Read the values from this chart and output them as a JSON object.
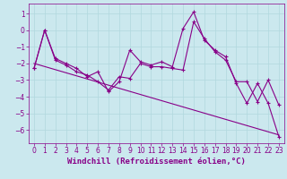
{
  "xlabel": "Windchill (Refroidissement éolien,°C)",
  "bg_color": "#cbe8ee",
  "line_color": "#880088",
  "grid_color": "#b0d8de",
  "xlim": [
    -0.5,
    23.5
  ],
  "ylim": [
    -6.8,
    1.6
  ],
  "yticks": [
    1,
    0,
    -1,
    -2,
    -3,
    -4,
    -5,
    -6
  ],
  "xticks": [
    0,
    1,
    2,
    3,
    4,
    5,
    6,
    7,
    8,
    9,
    10,
    11,
    12,
    13,
    14,
    15,
    16,
    17,
    18,
    19,
    20,
    21,
    22,
    23
  ],
  "line1_x": [
    0,
    1,
    2,
    3,
    4,
    5,
    6,
    7,
    8,
    9,
    10,
    11,
    12,
    13,
    14,
    15,
    16,
    17,
    18,
    19,
    20,
    21,
    22,
    23
  ],
  "line1_y": [
    -2.3,
    0.0,
    -1.7,
    -2.0,
    -2.3,
    -2.8,
    -2.5,
    -3.7,
    -3.1,
    -1.2,
    -1.9,
    -2.1,
    -1.9,
    -2.2,
    0.1,
    1.1,
    -0.6,
    -1.2,
    -1.6,
    -3.2,
    -4.4,
    -3.2,
    -4.4,
    -6.4
  ],
  "line2_x": [
    0,
    1,
    2,
    3,
    4,
    5,
    6,
    7,
    8,
    9,
    10,
    11,
    12,
    13,
    14,
    15,
    16,
    17,
    18,
    19,
    20,
    21,
    22,
    23
  ],
  "line2_y": [
    -2.3,
    0.0,
    -1.8,
    -2.1,
    -2.5,
    -2.7,
    -3.1,
    -3.6,
    -2.8,
    -2.9,
    -2.0,
    -2.2,
    -2.2,
    -2.3,
    -2.4,
    0.5,
    -0.5,
    -1.3,
    -1.8,
    -3.1,
    -3.1,
    -4.3,
    -3.0,
    -4.5
  ],
  "line3_x": [
    0,
    23
  ],
  "line3_y": [
    -2.0,
    -6.3
  ],
  "xlabel_color": "#880088",
  "xlabel_fontsize": 6.5,
  "tick_fontsize": 5.5,
  "tick_color": "#880088",
  "marker": "+",
  "marker_size": 3,
  "lw": 0.8
}
